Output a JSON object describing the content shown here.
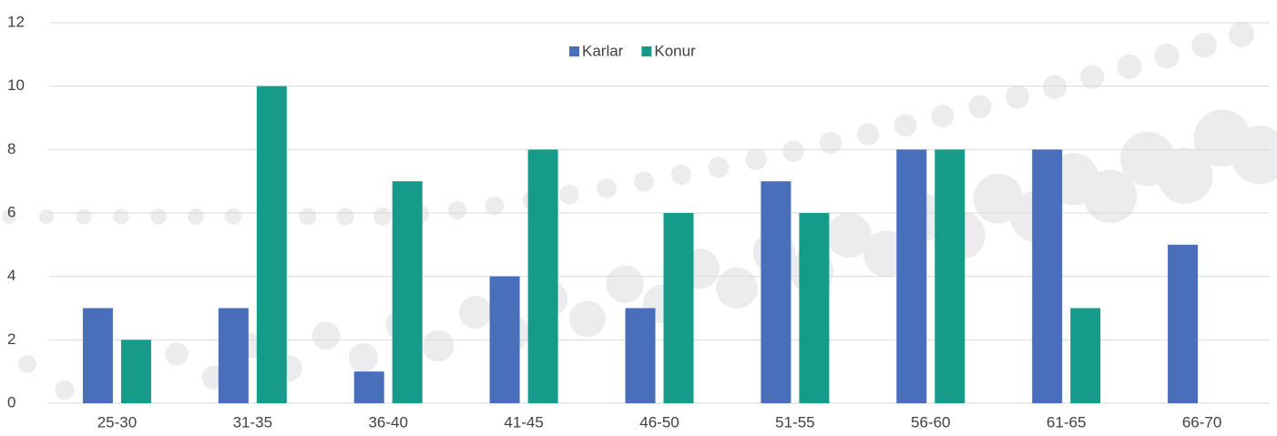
{
  "chart_data": {
    "type": "bar",
    "categories": [
      "25-30",
      "31-35",
      "36-40",
      "41-45",
      "46-50",
      "51-55",
      "56-60",
      "61-65",
      "66-70"
    ],
    "series": [
      {
        "name": "Karlar",
        "color": "#4a6fba",
        "values": [
          3,
          3,
          1,
          4,
          3,
          7,
          8,
          8,
          5
        ]
      },
      {
        "name": "Konur",
        "color": "#169b8a",
        "values": [
          2,
          10,
          7,
          8,
          6,
          6,
          8,
          3,
          0
        ]
      }
    ],
    "ylim": [
      0,
      12
    ],
    "yticks": [
      0,
      2,
      4,
      6,
      8,
      10,
      12
    ],
    "grid": true,
    "legend": "top"
  }
}
